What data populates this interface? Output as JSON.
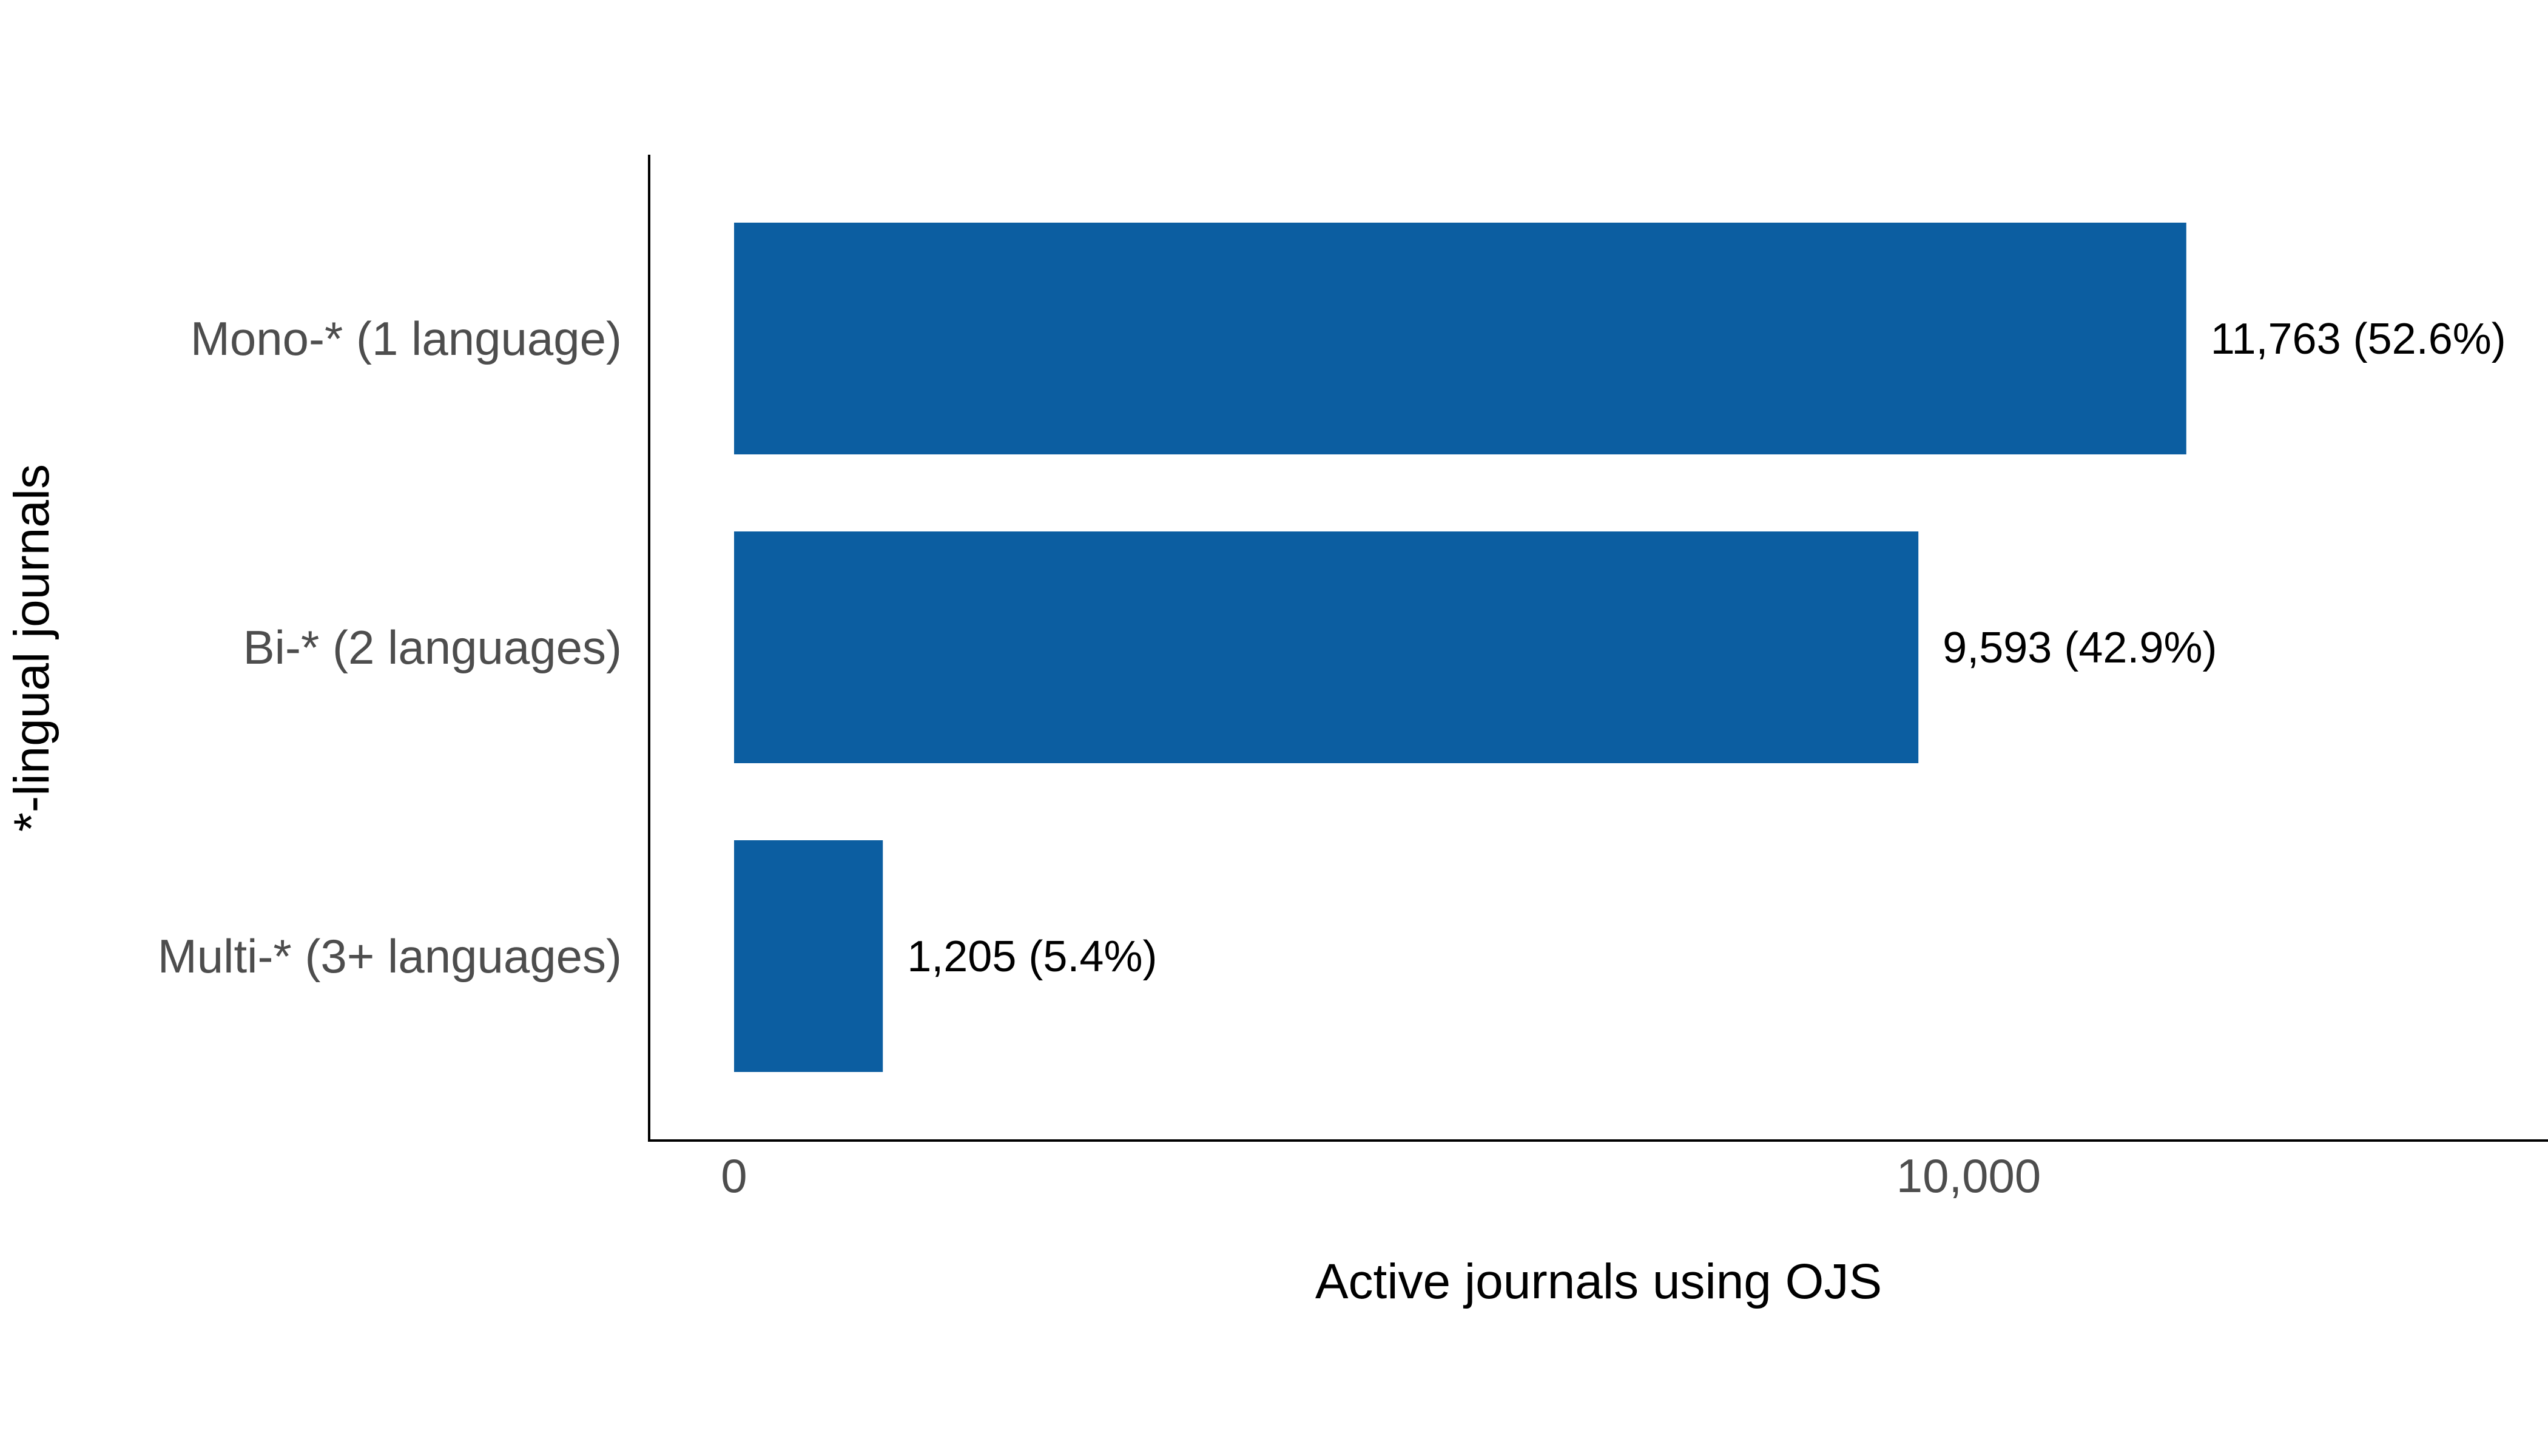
{
  "chart_data": {
    "type": "bar",
    "orientation": "horizontal",
    "categories": [
      "Mono-* (1 language)",
      "Bi-* (2 languages)",
      "Multi-* (3+ languages)"
    ],
    "values": [
      11763,
      9593,
      1205
    ],
    "data_labels": [
      "11,763 (52.6%)",
      "9,593 (42.9%)",
      "1,205 (5.4%)"
    ],
    "xlabel": "Active journals using OJS",
    "ylabel": "*-lingual journals",
    "xlim": [
      0,
      14500
    ],
    "x_ticks": [
      0,
      10000
    ],
    "x_tick_labels": [
      "0",
      "10,000"
    ],
    "bar_color": "#0c5ea1",
    "grid": false,
    "legend": "none"
  }
}
